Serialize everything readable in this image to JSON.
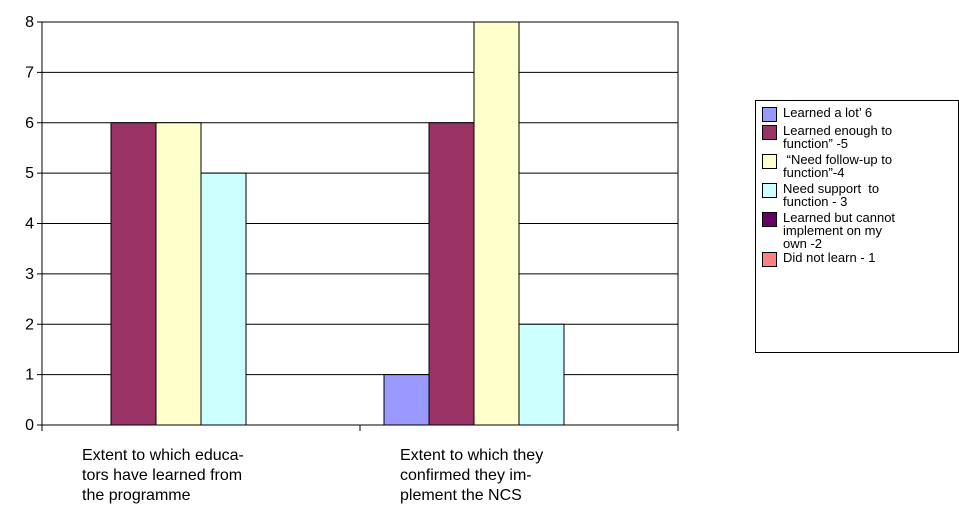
{
  "chart_data": {
    "type": "bar",
    "categories": [
      [
        "Extent to which educa-",
        "tors have learned from",
        "the programme"
      ],
      [
        "Extent to which they",
        "confirmed they im-",
        "plement the NCS"
      ]
    ],
    "series": [
      {
        "name": [
          "Learned a lot’ 6"
        ],
        "color": "#9999ff",
        "values": [
          0,
          1
        ]
      },
      {
        "name": [
          "Learned enough to",
          "function” -5"
        ],
        "color": "#993366",
        "values": [
          6,
          6
        ]
      },
      {
        "name": [
          " “Need follow-up to",
          "function”-4"
        ],
        "color": "#ffffcc",
        "values": [
          6,
          8
        ]
      },
      {
        "name": [
          "Need support  to",
          "function - 3"
        ],
        "color": "#ccffff",
        "values": [
          5,
          2
        ]
      },
      {
        "name": [
          "Learned but cannot",
          "implement on my",
          "own -2"
        ],
        "color": "#660066",
        "values": [
          0,
          0
        ]
      },
      {
        "name": [
          "Did not learn - 1"
        ],
        "color": "#ff8080",
        "values": [
          0,
          0
        ]
      }
    ],
    "ylim": [
      0,
      8
    ],
    "yticks": [
      0,
      1,
      2,
      3,
      4,
      5,
      6,
      7,
      8
    ],
    "grid": true,
    "legend": "right"
  }
}
